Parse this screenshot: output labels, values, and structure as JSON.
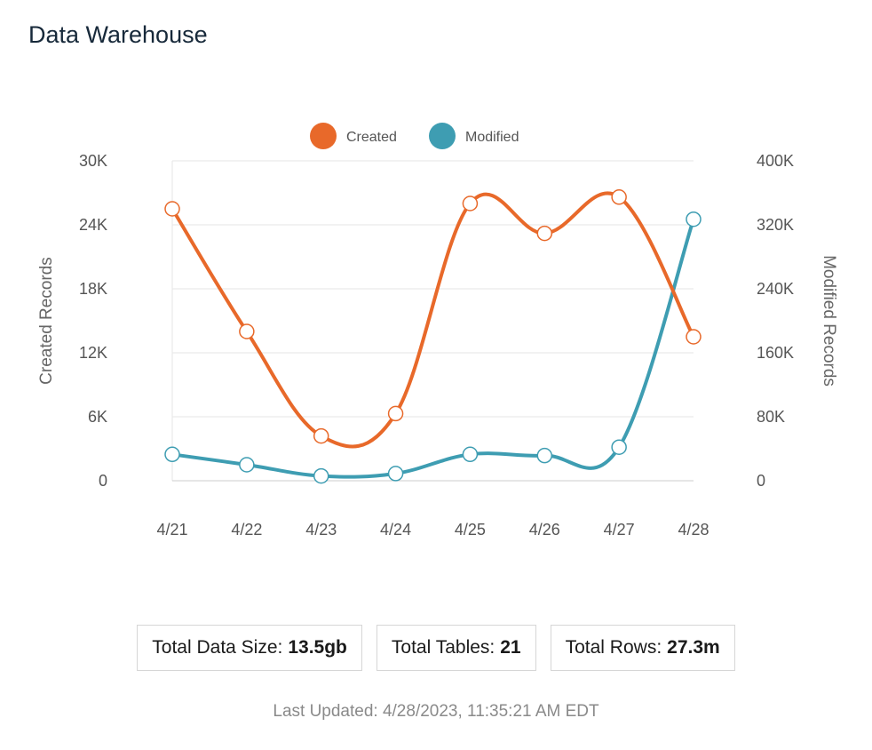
{
  "title": "Data Warehouse",
  "chart_data": {
    "type": "line",
    "categories": [
      "4/21",
      "4/22",
      "4/23",
      "4/24",
      "4/25",
      "4/26",
      "4/27",
      "4/28"
    ],
    "series": [
      {
        "name": "Created",
        "axis": "left",
        "color": "#e8692a",
        "values": [
          25500,
          14000,
          4200,
          6300,
          26000,
          23200,
          26600,
          13500
        ]
      },
      {
        "name": "Modified",
        "axis": "right",
        "color": "#3e9db2",
        "values": [
          33000,
          20000,
          6000,
          9000,
          33000,
          31500,
          42000,
          327000
        ]
      }
    ],
    "y_left": {
      "label": "Created Records",
      "min": 0,
      "max": 30000,
      "ticks": [
        "0",
        "6K",
        "12K",
        "18K",
        "24K",
        "30K"
      ]
    },
    "y_right": {
      "label": "Modified Records",
      "min": 0,
      "max": 400000,
      "ticks": [
        "0",
        "80K",
        "160K",
        "240K",
        "320K",
        "400K"
      ]
    },
    "legend_position": "top-center",
    "grid": true
  },
  "stats": [
    {
      "label": "Total Data Size:",
      "value": "13.5gb"
    },
    {
      "label": "Total Tables:",
      "value": "21"
    },
    {
      "label": "Total Rows:",
      "value": "27.3m"
    }
  ],
  "last_updated": "Last Updated: 4/28/2023, 11:35:21 AM EDT"
}
